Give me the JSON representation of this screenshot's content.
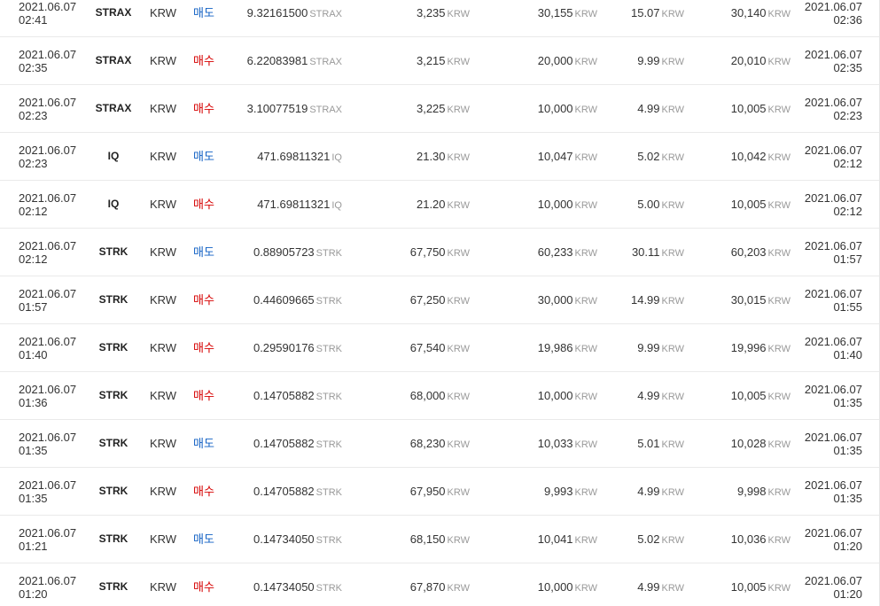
{
  "rows": [
    {
      "exec_date": "2021.06.07",
      "exec_time": "02:41",
      "coin": "STRAX",
      "market": "KRW",
      "type": "매도",
      "side": "sell",
      "qty": "9.32161500",
      "qty_unit": "STRAX",
      "price": "3,235",
      "price_unit": "KRW",
      "amount": "30,155",
      "amount_unit": "KRW",
      "fee": "15.07",
      "fee_unit": "KRW",
      "settle": "30,140",
      "settle_unit": "KRW",
      "order_date": "2021.06.07",
      "order_time": "02:36"
    },
    {
      "exec_date": "2021.06.07",
      "exec_time": "02:35",
      "coin": "STRAX",
      "market": "KRW",
      "type": "매수",
      "side": "buy",
      "qty": "6.22083981",
      "qty_unit": "STRAX",
      "price": "3,215",
      "price_unit": "KRW",
      "amount": "20,000",
      "amount_unit": "KRW",
      "fee": "9.99",
      "fee_unit": "KRW",
      "settle": "20,010",
      "settle_unit": "KRW",
      "order_date": "2021.06.07",
      "order_time": "02:35"
    },
    {
      "exec_date": "2021.06.07",
      "exec_time": "02:23",
      "coin": "STRAX",
      "market": "KRW",
      "type": "매수",
      "side": "buy",
      "qty": "3.10077519",
      "qty_unit": "STRAX",
      "price": "3,225",
      "price_unit": "KRW",
      "amount": "10,000",
      "amount_unit": "KRW",
      "fee": "4.99",
      "fee_unit": "KRW",
      "settle": "10,005",
      "settle_unit": "KRW",
      "order_date": "2021.06.07",
      "order_time": "02:23"
    },
    {
      "exec_date": "2021.06.07",
      "exec_time": "02:23",
      "coin": "IQ",
      "market": "KRW",
      "type": "매도",
      "side": "sell",
      "qty": "471.69811321",
      "qty_unit": "IQ",
      "price": "21.30",
      "price_unit": "KRW",
      "amount": "10,047",
      "amount_unit": "KRW",
      "fee": "5.02",
      "fee_unit": "KRW",
      "settle": "10,042",
      "settle_unit": "KRW",
      "order_date": "2021.06.07",
      "order_time": "02:12"
    },
    {
      "exec_date": "2021.06.07",
      "exec_time": "02:12",
      "coin": "IQ",
      "market": "KRW",
      "type": "매수",
      "side": "buy",
      "qty": "471.69811321",
      "qty_unit": "IQ",
      "price": "21.20",
      "price_unit": "KRW",
      "amount": "10,000",
      "amount_unit": "KRW",
      "fee": "5.00",
      "fee_unit": "KRW",
      "settle": "10,005",
      "settle_unit": "KRW",
      "order_date": "2021.06.07",
      "order_time": "02:12"
    },
    {
      "exec_date": "2021.06.07",
      "exec_time": "02:12",
      "coin": "STRK",
      "market": "KRW",
      "type": "매도",
      "side": "sell",
      "qty": "0.88905723",
      "qty_unit": "STRK",
      "price": "67,750",
      "price_unit": "KRW",
      "amount": "60,233",
      "amount_unit": "KRW",
      "fee": "30.11",
      "fee_unit": "KRW",
      "settle": "60,203",
      "settle_unit": "KRW",
      "order_date": "2021.06.07",
      "order_time": "01:57"
    },
    {
      "exec_date": "2021.06.07",
      "exec_time": "01:57",
      "coin": "STRK",
      "market": "KRW",
      "type": "매수",
      "side": "buy",
      "qty": "0.44609665",
      "qty_unit": "STRK",
      "price": "67,250",
      "price_unit": "KRW",
      "amount": "30,000",
      "amount_unit": "KRW",
      "fee": "14.99",
      "fee_unit": "KRW",
      "settle": "30,015",
      "settle_unit": "KRW",
      "order_date": "2021.06.07",
      "order_time": "01:55"
    },
    {
      "exec_date": "2021.06.07",
      "exec_time": "01:40",
      "coin": "STRK",
      "market": "KRW",
      "type": "매수",
      "side": "buy",
      "qty": "0.29590176",
      "qty_unit": "STRK",
      "price": "67,540",
      "price_unit": "KRW",
      "amount": "19,986",
      "amount_unit": "KRW",
      "fee": "9.99",
      "fee_unit": "KRW",
      "settle": "19,996",
      "settle_unit": "KRW",
      "order_date": "2021.06.07",
      "order_time": "01:40"
    },
    {
      "exec_date": "2021.06.07",
      "exec_time": "01:36",
      "coin": "STRK",
      "market": "KRW",
      "type": "매수",
      "side": "buy",
      "qty": "0.14705882",
      "qty_unit": "STRK",
      "price": "68,000",
      "price_unit": "KRW",
      "amount": "10,000",
      "amount_unit": "KRW",
      "fee": "4.99",
      "fee_unit": "KRW",
      "settle": "10,005",
      "settle_unit": "KRW",
      "order_date": "2021.06.07",
      "order_time": "01:35"
    },
    {
      "exec_date": "2021.06.07",
      "exec_time": "01:35",
      "coin": "STRK",
      "market": "KRW",
      "type": "매도",
      "side": "sell",
      "qty": "0.14705882",
      "qty_unit": "STRK",
      "price": "68,230",
      "price_unit": "KRW",
      "amount": "10,033",
      "amount_unit": "KRW",
      "fee": "5.01",
      "fee_unit": "KRW",
      "settle": "10,028",
      "settle_unit": "KRW",
      "order_date": "2021.06.07",
      "order_time": "01:35"
    },
    {
      "exec_date": "2021.06.07",
      "exec_time": "01:35",
      "coin": "STRK",
      "market": "KRW",
      "type": "매수",
      "side": "buy",
      "qty": "0.14705882",
      "qty_unit": "STRK",
      "price": "67,950",
      "price_unit": "KRW",
      "amount": "9,993",
      "amount_unit": "KRW",
      "fee": "4.99",
      "fee_unit": "KRW",
      "settle": "9,998",
      "settle_unit": "KRW",
      "order_date": "2021.06.07",
      "order_time": "01:35"
    },
    {
      "exec_date": "2021.06.07",
      "exec_time": "01:21",
      "coin": "STRK",
      "market": "KRW",
      "type": "매도",
      "side": "sell",
      "qty": "0.14734050",
      "qty_unit": "STRK",
      "price": "68,150",
      "price_unit": "KRW",
      "amount": "10,041",
      "amount_unit": "KRW",
      "fee": "5.02",
      "fee_unit": "KRW",
      "settle": "10,036",
      "settle_unit": "KRW",
      "order_date": "2021.06.07",
      "order_time": "01:20"
    },
    {
      "exec_date": "2021.06.07",
      "exec_time": "01:20",
      "coin": "STRK",
      "market": "KRW",
      "type": "매수",
      "side": "buy",
      "qty": "0.14734050",
      "qty_unit": "STRK",
      "price": "67,870",
      "price_unit": "KRW",
      "amount": "10,000",
      "amount_unit": "KRW",
      "fee": "4.99",
      "fee_unit": "KRW",
      "settle": "10,005",
      "settle_unit": "KRW",
      "order_date": "2021.06.07",
      "order_time": "01:20"
    }
  ],
  "colors": {
    "buy": "#d60000",
    "sell": "#1261c4",
    "unit": "#999999",
    "divider": "#eaeaea"
  }
}
